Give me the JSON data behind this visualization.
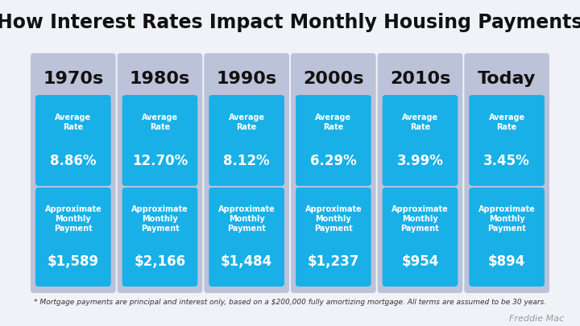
{
  "title": "How Interest Rates Impact Monthly Housing Payments",
  "title_fontsize": 17,
  "background_color": "#f0f2f8",
  "card_bg_color": "#bcc2d8",
  "blue_box_color": "#19b0e8",
  "periods": [
    "1970s",
    "1980s",
    "1990s",
    "2000s",
    "2010s",
    "Today"
  ],
  "rates": [
    "8.86%",
    "12.70%",
    "8.12%",
    "6.29%",
    "3.99%",
    "3.45%"
  ],
  "payments": [
    "$1,589",
    "$2,166",
    "$1,484",
    "$1,237",
    "$954",
    "$894"
  ],
  "avg_rate_label": "Average\nRate",
  "approx_label": "Approximate\nMonthly\nPayment",
  "footnote": "* Mortgage payments are principal and interest only, based on a $200,000 fully amortizing mortgage. All terms are assumed to be 30 years.",
  "credit": "Freddie Mac",
  "period_fontsize": 16,
  "rate_label_fontsize": 7,
  "rate_value_fontsize": 12,
  "payment_label_fontsize": 7,
  "payment_value_fontsize": 12,
  "footnote_fontsize": 6.5,
  "credit_fontsize": 8
}
